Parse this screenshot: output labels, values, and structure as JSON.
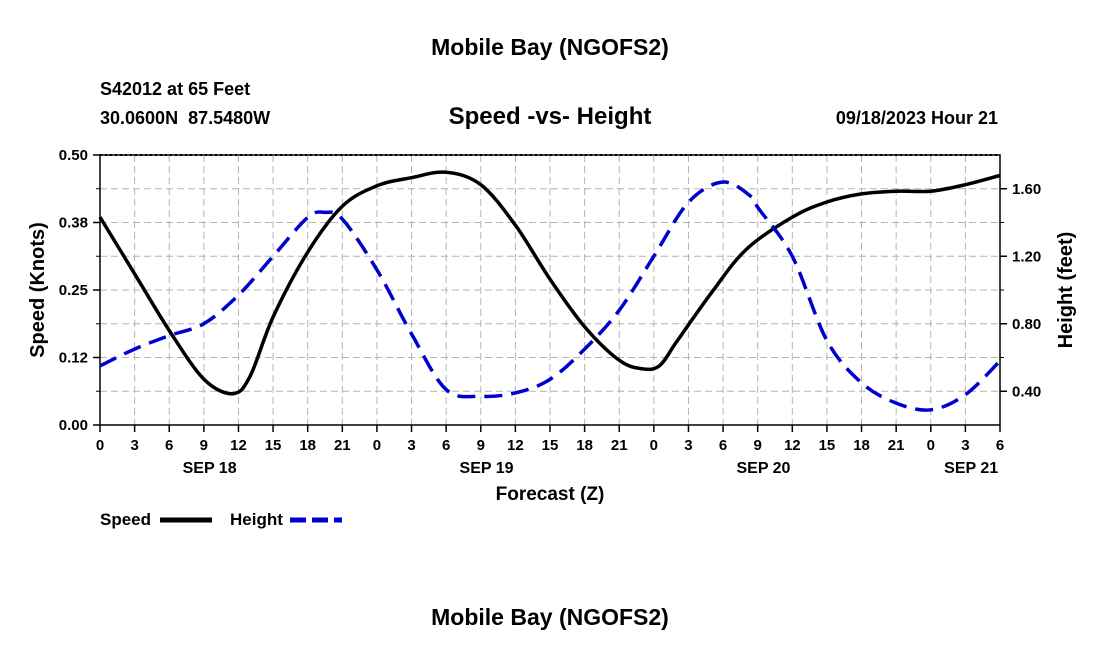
{
  "page": {
    "title_top": "Mobile Bay (NGOFS2)",
    "title_bottom": "Mobile Bay (NGOFS2)",
    "station": "S42012 at 65 Feet",
    "coords": "30.0600N  87.5480W",
    "subtitle": "Speed -vs- Height",
    "timestamp": "09/18/2023 Hour 21"
  },
  "colors": {
    "speed": "#000000",
    "height": "#0000cc",
    "grid": "#b4b4b4"
  },
  "chart_data": {
    "type": "line",
    "title": "Speed -vs- Height",
    "xlabel": "Forecast (Z)",
    "ylabel": "Speed (Knots)",
    "ylabel_right": "Height (feet)",
    "x_unit": "hours",
    "x_range": [
      0,
      78
    ],
    "x_ticks": [
      0,
      3,
      6,
      9,
      12,
      15,
      18,
      21,
      24,
      27,
      30,
      33,
      36,
      39,
      42,
      45,
      48,
      51,
      54,
      57,
      60,
      63,
      66,
      69,
      72,
      75,
      78
    ],
    "x_tick_labels": [
      "0",
      "3",
      "6",
      "9",
      "12",
      "15",
      "18",
      "21",
      "0",
      "3",
      "6",
      "9",
      "12",
      "15",
      "18",
      "21",
      "0",
      "3",
      "6",
      "9",
      "12",
      "15",
      "18",
      "21",
      "0",
      "3",
      "6"
    ],
    "date_labels": [
      {
        "x": 9.5,
        "label": "SEP 18"
      },
      {
        "x": 33.5,
        "label": "SEP 19"
      },
      {
        "x": 57.5,
        "label": "SEP 20"
      },
      {
        "x": 75.5,
        "label": "SEP 21"
      }
    ],
    "ylim": [
      0,
      0.5
    ],
    "y_ticks": [
      0.0,
      0.125,
      0.25,
      0.375,
      0.5
    ],
    "y_tick_labels": [
      "0.00",
      "0.12",
      "0.25",
      "0.38",
      "0.50"
    ],
    "y2lim": [
      0.2,
      1.8
    ],
    "y2_ticks": [
      0.4,
      0.8,
      1.2,
      1.6
    ],
    "y2_tick_labels": [
      "0.40",
      "0.80",
      "1.20",
      "1.60"
    ],
    "grid": true,
    "legend_position": "bottom-left",
    "series": [
      {
        "name": "Speed",
        "axis": "left",
        "style": "solid",
        "x": [
          0,
          3,
          6,
          9,
          11.5,
          13,
          15,
          18,
          21,
          24,
          27,
          30,
          33,
          36,
          39,
          42,
          45,
          47,
          48.5,
          50,
          53,
          56,
          60,
          63,
          66,
          69,
          72,
          75,
          78
        ],
        "y": [
          0.385,
          0.28,
          0.175,
          0.085,
          0.058,
          0.09,
          0.2,
          0.32,
          0.405,
          0.443,
          0.458,
          0.468,
          0.445,
          0.37,
          0.27,
          0.182,
          0.12,
          0.104,
          0.11,
          0.155,
          0.245,
          0.325,
          0.385,
          0.413,
          0.428,
          0.433,
          0.433,
          0.445,
          0.462
        ]
      },
      {
        "name": "Height",
        "axis": "right",
        "style": "dashed",
        "x": [
          0,
          3,
          6,
          9,
          12,
          15,
          18,
          19.5,
          21,
          24,
          27,
          30,
          33,
          36,
          39,
          42,
          45,
          48,
          51,
          54,
          56.5,
          57,
          60,
          63,
          66,
          69,
          72,
          75,
          78
        ],
        "y": [
          0.55,
          0.65,
          0.73,
          0.8,
          0.97,
          1.2,
          1.43,
          1.46,
          1.42,
          1.12,
          0.74,
          0.41,
          0.37,
          0.39,
          0.47,
          0.65,
          0.88,
          1.2,
          1.52,
          1.64,
          1.55,
          1.49,
          1.2,
          0.7,
          0.45,
          0.33,
          0.29,
          0.38,
          0.58
        ]
      }
    ]
  }
}
